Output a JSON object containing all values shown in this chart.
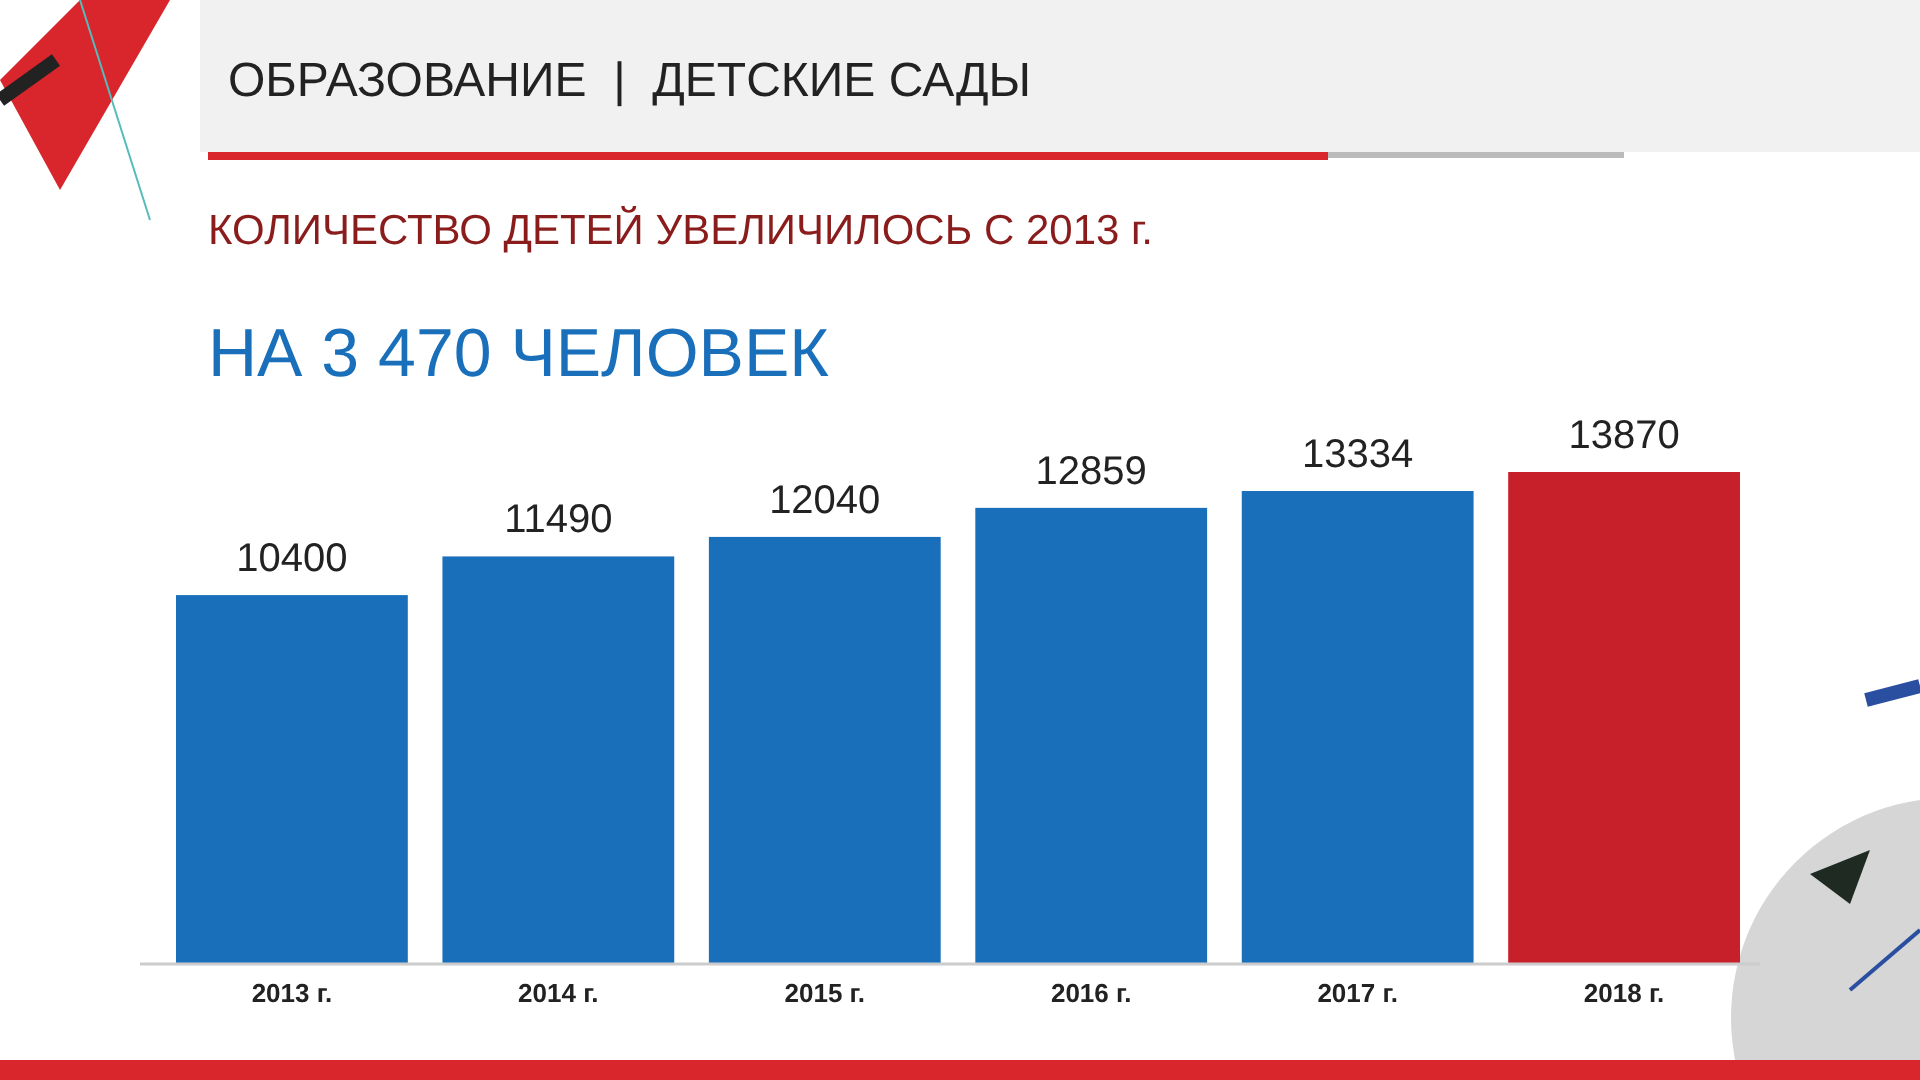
{
  "chart_data": {
    "type": "bar",
    "title": "ОБРАЗОВАНИЕ  |  ДЕТСКИЕ САДЫ",
    "subtitle": "КОЛИЧЕСТВО ДЕТЕЙ УВЕЛИЧИЛОСЬ С 2013 г.",
    "annotations": [
      "НА 3 470 ЧЕЛОВЕК"
    ],
    "categories": [
      "2013 г.",
      "2014 г.",
      "2015 г.",
      "2016 г.",
      "2017 г.",
      "2018 г."
    ],
    "values": [
      10400,
      11490,
      12040,
      12859,
      13334,
      13870
    ],
    "colors": [
      "#1a6fba",
      "#1a6fba",
      "#1a6fba",
      "#1a6fba",
      "#1a6fba",
      "#c8202a"
    ],
    "data_labels": true
  }
}
